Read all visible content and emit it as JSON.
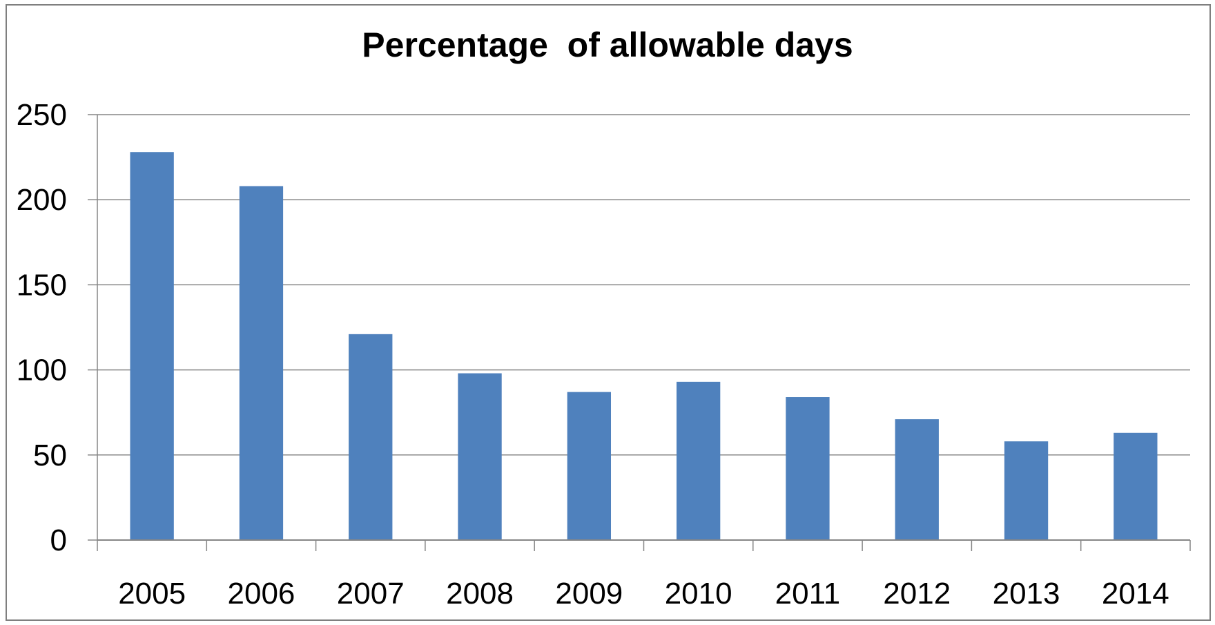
{
  "chart_data": {
    "type": "bar",
    "title": "Percentage  of allowable days",
    "xlabel": "",
    "ylabel": "",
    "categories": [
      "2005",
      "2006",
      "2007",
      "2008",
      "2009",
      "2010",
      "2011",
      "2012",
      "2013",
      "2014"
    ],
    "values": [
      228,
      208,
      121,
      98,
      87,
      93,
      84,
      71,
      58,
      63
    ],
    "ylim": [
      0,
      250
    ],
    "yticks": [
      "0",
      "50",
      "100",
      "150",
      "200",
      "250"
    ],
    "grid": true,
    "legend": "none",
    "colors": {
      "bar": "#4f81bd",
      "grid": "#868686",
      "axis": "#868686",
      "frame": "#7f7f7f"
    }
  }
}
